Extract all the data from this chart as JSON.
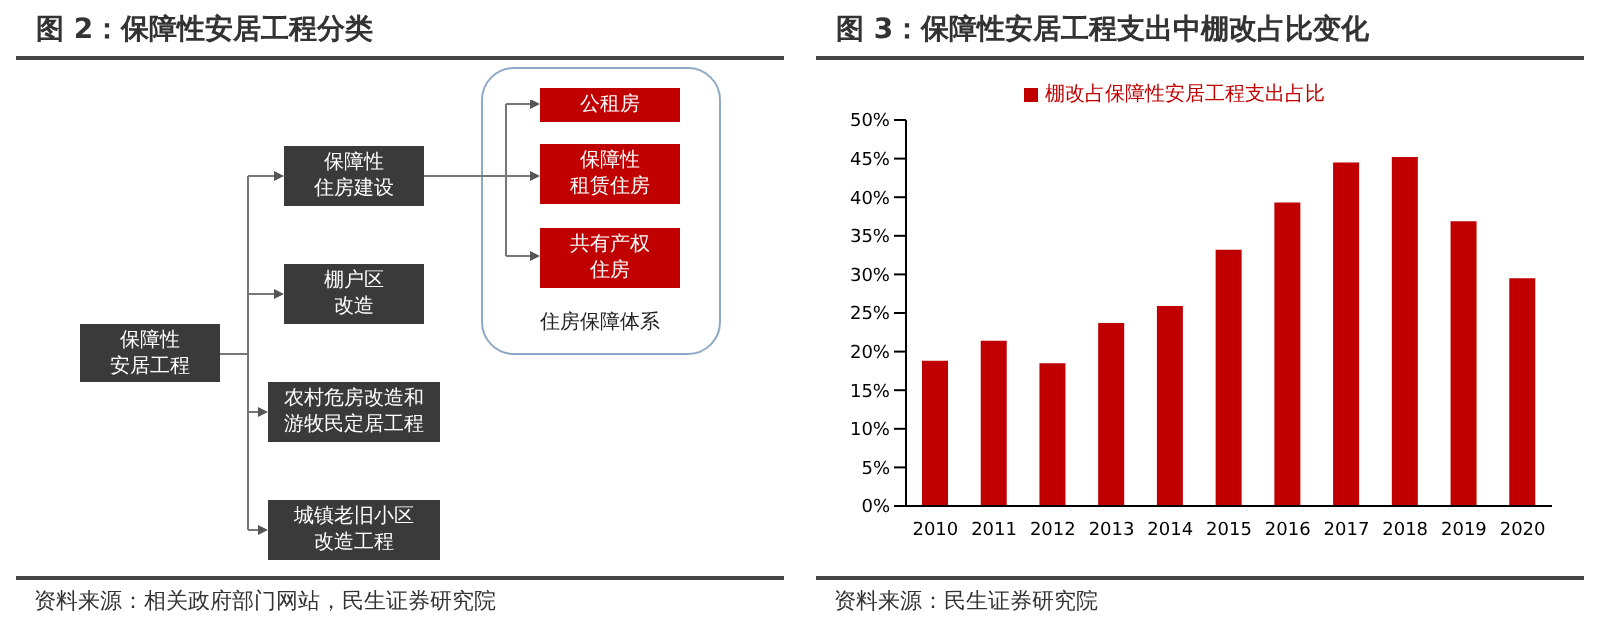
{
  "chart_data": [
    {
      "type": "other",
      "title": "图 2：保障性安居工程分类",
      "annotations": [
        "保障性安居工程",
        "保障性住房建设",
        "棚户区改造",
        "农村危房改造和游牧民定居工程",
        "城镇老旧小区改造工程",
        "公租房",
        "保障性租赁住房",
        "共有产权住房",
        "住房保障体系",
        "资料来源：相关政府部门网站，民生证券研究院"
      ]
    },
    {
      "type": "bar",
      "title": "图 3：保障性安居工程支出中棚改占比变化",
      "categories": [
        "2010",
        "2011",
        "2012",
        "2013",
        "2014",
        "2015",
        "2016",
        "2017",
        "2018",
        "2019",
        "2020"
      ],
      "series": [
        {
          "name": "棚改占保障性安居工程支出占比",
          "color": "#c00000",
          "values": [
            18.8,
            21.4,
            18.5,
            23.7,
            25.9,
            33.2,
            39.3,
            44.5,
            45.2,
            36.9,
            29.5
          ]
        }
      ],
      "ylim": [
        0,
        50
      ],
      "yticks": [
        {
          "value": 0,
          "label": "0%"
        },
        {
          "value": 5,
          "label": "5%"
        },
        {
          "value": 10,
          "label": "10%"
        },
        {
          "value": 15,
          "label": "15%"
        },
        {
          "value": 20,
          "label": "20%"
        },
        {
          "value": 25,
          "label": "25%"
        },
        {
          "value": 30,
          "label": "30%"
        },
        {
          "value": 35,
          "label": "35%"
        },
        {
          "value": 40,
          "label": "40%"
        },
        {
          "value": 45,
          "label": "45%"
        },
        {
          "value": 50,
          "label": "50%"
        }
      ],
      "legend": "top",
      "grid": false,
      "annotations": [
        "资料来源：民生证券研究院"
      ]
    }
  ]
}
